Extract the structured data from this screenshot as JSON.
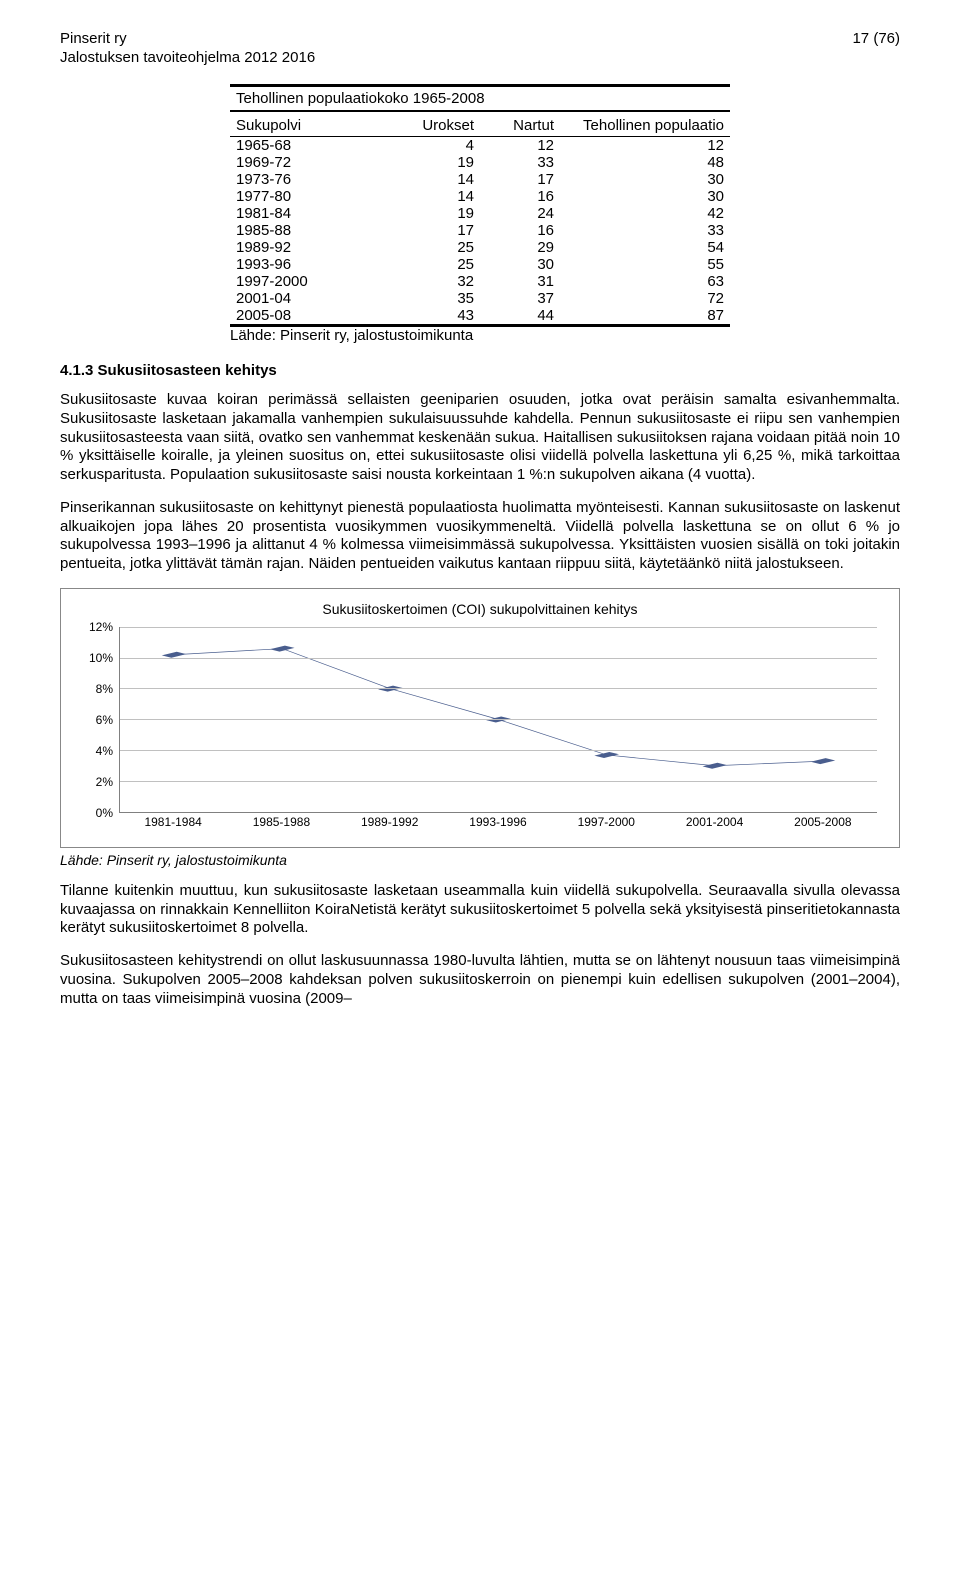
{
  "header": {
    "org": "Pinserit ry",
    "page_num": "17 (76)",
    "doc_title": "Jalostuksen tavoiteohjelma 2012 2016"
  },
  "pop_table": {
    "title": "Tehollinen populaatiokoko 1965-2008",
    "columns": [
      "Sukupolvi",
      "Urokset",
      "Nartut",
      "Tehollinen populaatio"
    ],
    "rows": [
      {
        "gen": "1965-68",
        "u": "4",
        "n": "12",
        "t": "12"
      },
      {
        "gen": "1969-72",
        "u": "19",
        "n": "33",
        "t": "48"
      },
      {
        "gen": "1973-76",
        "u": "14",
        "n": "17",
        "t": "30"
      },
      {
        "gen": "1977-80",
        "u": "14",
        "n": "16",
        "t": "30"
      },
      {
        "gen": "1981-84",
        "u": "19",
        "n": "24",
        "t": "42"
      },
      {
        "gen": "1985-88",
        "u": "17",
        "n": "16",
        "t": "33"
      },
      {
        "gen": "1989-92",
        "u": "25",
        "n": "29",
        "t": "54"
      },
      {
        "gen": "1993-96",
        "u": "25",
        "n": "30",
        "t": "55"
      },
      {
        "gen": "1997-2000",
        "u": "32",
        "n": "31",
        "t": "63"
      },
      {
        "gen": "2001-04",
        "u": "35",
        "n": "37",
        "t": "72"
      },
      {
        "gen": "2005-08",
        "u": "43",
        "n": "44",
        "t": "87"
      }
    ],
    "source": "Lähde: Pinserit ry, jalostustoimikunta"
  },
  "section_h": "4.1.3 Sukusiitosasteen kehitys",
  "p1": "Sukusiitosaste kuvaa koiran perimässä sellaisten geeniparien osuuden, jotka ovat peräisin samalta esivanhemmalta. Sukusiitosaste lasketaan jakamalla vanhempien sukulaisuussuhde kahdella. Pennun sukusiitosaste ei riipu sen vanhempien sukusiitosasteesta vaan siitä, ovatko sen vanhemmat keskenään sukua. Haitallisen sukusiitoksen rajana voidaan pitää noin 10 % yksittäiselle koiralle, ja yleinen suositus on, ettei sukusiitosaste olisi viidellä polvella laskettuna yli 6,25 %, mikä tarkoittaa serkusparitusta. Populaation sukusiitosaste saisi nousta korkeintaan 1 %:n sukupolven aikana (4 vuotta).",
  "p2": "Pinserikannan sukusiitosaste on kehittynyt pienestä populaatiosta huolimatta myönteisesti. Kannan sukusiitosaste on laskenut alkuaikojen jopa lähes 20 prosentista vuosikymmen vuosikymmeneltä. Viidellä polvella laskettuna se on ollut 6 % jo sukupolvessa 1993–1996 ja alittanut 4 % kolmessa viimeisimmässä sukupolvessa. Yksittäisten vuosien sisällä on toki joitakin pentueita, jotka ylittävät tämän rajan. Näiden pentueiden vaikutus kantaan riippuu siitä, käytetäänkö niitä jalostukseen.",
  "chart": {
    "title": "Sukusiitoskertoimen (COI) sukupolvittainen kehitys",
    "y_ticks": [
      "0%",
      "2%",
      "4%",
      "6%",
      "8%",
      "10%",
      "12%"
    ],
    "y_max": 12,
    "x_labels": [
      "1981-1984",
      "1985-1988",
      "1989-1992",
      "1993-1996",
      "1997-2000",
      "2001-2004",
      "2005-2008"
    ],
    "values": [
      10.2,
      10.6,
      8.0,
      6.0,
      3.7,
      3.0,
      3.3
    ],
    "line_color": "#4a5e8e",
    "marker_color": "#4a5e8e",
    "grid_color": "#c0c0c0",
    "axis_color": "#808080",
    "bg_color": "#ffffff"
  },
  "chart_source": "Lähde: Pinserit ry, jalostustoimikunta",
  "p3": "Tilanne kuitenkin muuttuu, kun sukusiitosaste lasketaan useammalla kuin viidellä sukupolvella. Seuraavalla sivulla olevassa kuvaajassa on rinnakkain Kennelliiton KoiraNetistä kerätyt sukusiitoskertoimet 5 polvella sekä yksityisestä pinseritietokannasta kerätyt sukusiitoskertoimet 8 polvella.",
  "p4": "Sukusiitosasteen kehitystrendi on ollut laskusuunnassa 1980-luvulta lähtien, mutta se on lähtenyt nousuun taas viimeisimpinä vuosina. Sukupolven 2005–2008 kahdeksan polven sukusiitoskerroin on pienempi kuin edellisen sukupolven (2001–2004), mutta on taas viimeisimpinä vuosina (2009–"
}
